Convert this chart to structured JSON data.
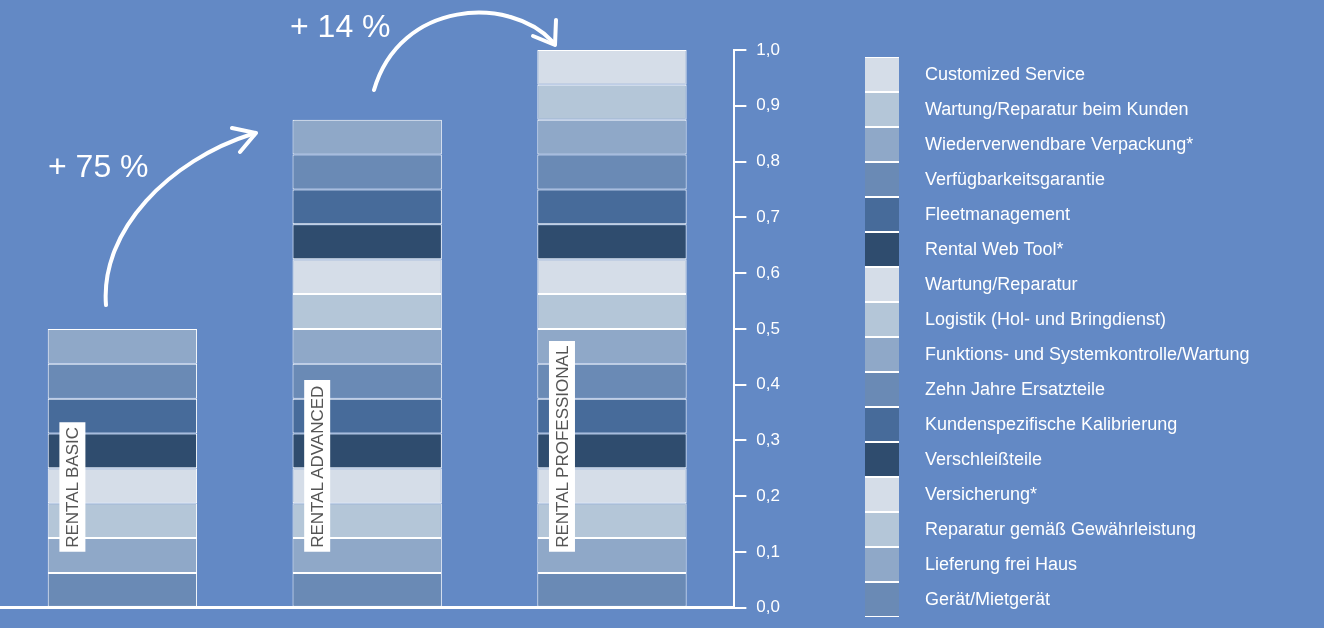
{
  "chart_data": {
    "type": "bar",
    "stacked": true,
    "categories": [
      "RENTAL BASIC",
      "RENTAL ADVANCED",
      "RENTAL PROFESSIONAL"
    ],
    "ylim": [
      0,
      1
    ],
    "yticks": [
      {
        "value": 0,
        "label": "0,0"
      },
      {
        "value": 0.1,
        "label": "0,1"
      },
      {
        "value": 0.2,
        "label": "0,2"
      },
      {
        "value": 0.3,
        "label": "0,3"
      },
      {
        "value": 0.4,
        "label": "0,4"
      },
      {
        "value": 0.5,
        "label": "0,5"
      },
      {
        "value": 0.6,
        "label": "0,6"
      },
      {
        "value": 0.7,
        "label": "0,7"
      },
      {
        "value": 0.8,
        "label": "0,8"
      },
      {
        "value": 0.9,
        "label": "0,9"
      },
      {
        "value": 1,
        "label": "1,0"
      }
    ],
    "grid": false,
    "legend": "right",
    "annotations": [
      "+ 75 %",
      "+ 14 %"
    ],
    "series": [
      {
        "name": "Gerät/Mietgerät",
        "color": "#6a8ab5",
        "values": [
          0.0625,
          0.0625,
          0.0625
        ]
      },
      {
        "name": "Lieferung frei Haus",
        "color": "#8fa8c8",
        "values": [
          0.0625,
          0.0625,
          0.0625
        ]
      },
      {
        "name": "Reparatur gemäß Gewährleistung",
        "color": "#b4c6d8",
        "values": [
          0.0625,
          0.0625,
          0.0625
        ]
      },
      {
        "name": "Versicherung*",
        "color": "#d5dde8",
        "values": [
          0.0625,
          0.0625,
          0.0625
        ]
      },
      {
        "name": "Verschleißteile",
        "color": "#2f4c6e",
        "values": [
          0.0625,
          0.0625,
          0.0625
        ]
      },
      {
        "name": "Kundenspezifische Kalibrierung",
        "color": "#476b9a",
        "values": [
          0.0625,
          0.0625,
          0.0625
        ]
      },
      {
        "name": "Zehn Jahre Ersatzteile",
        "color": "#6a8ab5",
        "values": [
          0.0625,
          0.0625,
          0.0625
        ]
      },
      {
        "name": "Funktions- und Systemkontrolle/Wartung",
        "color": "#8fa8c8",
        "values": [
          0.0625,
          0.0625,
          0.0625
        ]
      },
      {
        "name": "Logistik (Hol- und Bringdienst)",
        "color": "#b4c6d8",
        "values": [
          null,
          0.0625,
          0.0625
        ]
      },
      {
        "name": "Wartung/Reparatur",
        "color": "#d5dde8",
        "values": [
          null,
          0.0625,
          0.0625
        ]
      },
      {
        "name": "Rental Web Tool*",
        "color": "#2f4c6e",
        "values": [
          null,
          0.0625,
          0.0625
        ]
      },
      {
        "name": "Fleetmanagement",
        "color": "#476b9a",
        "values": [
          null,
          0.0625,
          0.0625
        ]
      },
      {
        "name": "Verfügbarkeitsgarantie",
        "color": "#6a8ab5",
        "values": [
          null,
          0.0625,
          0.0625
        ]
      },
      {
        "name": "Wiederverwendbare Verpackung*",
        "color": "#8fa8c8",
        "values": [
          null,
          0.0625,
          0.0625
        ]
      },
      {
        "name": "Wartung/Reparatur beim Kunden",
        "color": "#b4c6d8",
        "values": [
          null,
          null,
          0.0625
        ]
      },
      {
        "name": "Customized Service",
        "color": "#d5dde8",
        "values": [
          null,
          null,
          0.0625
        ]
      }
    ]
  }
}
